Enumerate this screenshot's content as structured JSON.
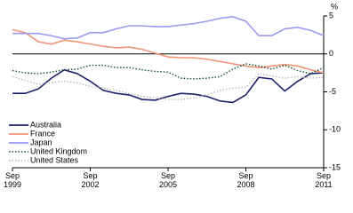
{
  "chart_data": {
    "type": "line",
    "y_label": "%",
    "categories": [
      "Sep 1999",
      null,
      null,
      null,
      null,
      null,
      "Sep 2002",
      null,
      null,
      null,
      null,
      null,
      "Sep 2005",
      null,
      null,
      null,
      null,
      null,
      "Sep 2008",
      null,
      null,
      null,
      null,
      null,
      "Sep 2011"
    ],
    "series": [
      {
        "name": "Australia",
        "color": "#1b1f6b",
        "style": "solid",
        "values": [
          -5.2,
          -5.2,
          -4.6,
          -3.2,
          -2.1,
          -2.6,
          -3.6,
          -4.8,
          -5.2,
          -5.4,
          -6.0,
          -6.1,
          -5.6,
          -5.2,
          -5.3,
          -5.6,
          -6.2,
          -6.4,
          -5.4,
          -3.1,
          -3.3,
          -4.9,
          -3.6,
          -2.6,
          -2.5
        ]
      },
      {
        "name": "France",
        "color": "#f0957a",
        "style": "solid",
        "values": [
          3.2,
          2.8,
          1.6,
          1.3,
          1.8,
          1.6,
          1.3,
          1.0,
          0.8,
          0.9,
          0.6,
          0.1,
          -0.4,
          -0.5,
          -0.5,
          -0.7,
          -1.0,
          -1.3,
          -1.6,
          -1.8,
          -1.6,
          -1.4,
          -1.6,
          -2.1,
          -2.5
        ]
      },
      {
        "name": "Japan",
        "color": "#9a9af0",
        "style": "solid",
        "values": [
          2.7,
          2.7,
          2.7,
          2.4,
          2.0,
          2.1,
          2.8,
          2.8,
          3.3,
          3.7,
          3.7,
          3.6,
          3.6,
          3.8,
          4.0,
          4.3,
          4.7,
          4.9,
          4.3,
          2.4,
          2.4,
          3.3,
          3.5,
          3.1,
          2.4
        ]
      },
      {
        "name": "United Kingdom",
        "color": "#0f4a2a",
        "style": "dotted",
        "values": [
          -2.2,
          -2.5,
          -2.6,
          -2.4,
          -2.1,
          -2.0,
          -1.5,
          -1.5,
          -1.8,
          -1.8,
          -2.1,
          -2.3,
          -2.4,
          -3.2,
          -3.3,
          -3.2,
          -3.0,
          -2.0,
          -1.3,
          -1.6,
          -2.0,
          -1.5,
          -2.2,
          -2.6,
          -1.8
        ]
      },
      {
        "name": "United States",
        "color": "#b8b8b8",
        "style": "dotted",
        "values": [
          -3.0,
          -3.5,
          -4.0,
          -3.8,
          -3.6,
          -3.8,
          -4.3,
          -4.5,
          -4.8,
          -5.2,
          -5.6,
          -5.8,
          -6.0,
          -6.0,
          -5.8,
          -5.4,
          -4.8,
          -4.5,
          -4.4,
          -2.6,
          -2.9,
          -3.2,
          -3.0,
          -3.2,
          -3.1
        ]
      }
    ],
    "ylim": [
      -15,
      5
    ],
    "yticks": [
      5,
      0,
      -5,
      -10,
      -15
    ],
    "zero_line": true,
    "legend": "bottom-left"
  }
}
